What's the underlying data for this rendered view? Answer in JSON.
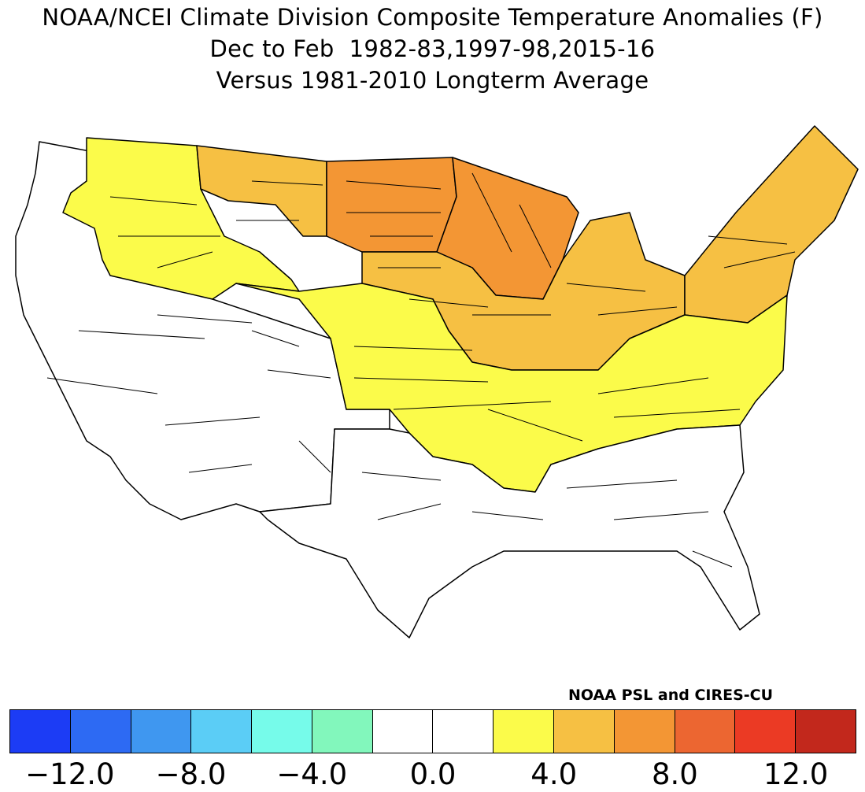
{
  "title": {
    "line1": "NOAA/NCEI Climate Division Composite Temperature Anomalies (F)",
    "line2": "Dec to Feb  1982-83,1997-98,2015-16",
    "line3": "Versus 1981-2010 Longterm Average"
  },
  "credit": "NOAA PSL and CIRES-CU",
  "legend": {
    "colors": [
      "#1c3cf5",
      "#2d6af3",
      "#3f97f0",
      "#5bcdf6",
      "#76fbea",
      "#82f7bc",
      "#ffffff",
      "#ffffff",
      "#fbfb4a",
      "#f6c043",
      "#f39634",
      "#ec6631",
      "#eb3a24",
      "#c2281c"
    ],
    "ticks": [
      "-12.0",
      "-8.0",
      "-4.0",
      "0.0",
      "4.0",
      "8.0",
      "12.0"
    ]
  },
  "map_regions": [
    {
      "name": "pacific-northwest",
      "color": "#fbfb4a"
    },
    {
      "name": "montana-east",
      "color": "#f6c043"
    },
    {
      "name": "northern-plains",
      "color": "#f39634"
    },
    {
      "name": "upper-midwest",
      "color": "#f39634"
    },
    {
      "name": "great-lakes",
      "color": "#f6c043"
    },
    {
      "name": "northeast",
      "color": "#f6c043"
    },
    {
      "name": "central-plains",
      "color": "#fbfb4a"
    },
    {
      "name": "mid-south",
      "color": "#fbfb4a"
    },
    {
      "name": "west",
      "color": "#ffffff"
    },
    {
      "name": "south",
      "color": "#ffffff"
    }
  ]
}
